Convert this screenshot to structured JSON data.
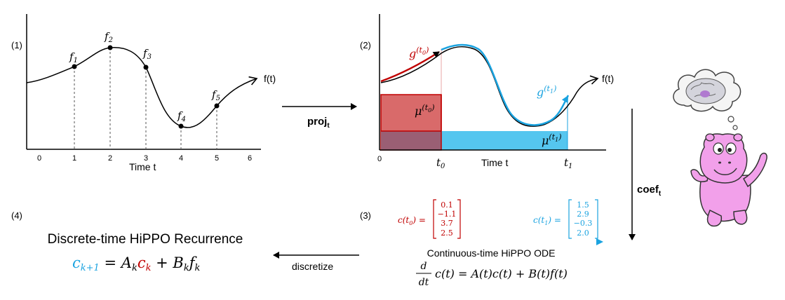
{
  "panel1": {
    "label": "(1)",
    "func_label": "f(t)",
    "xlabel": "Time t",
    "ticks": [
      "0",
      "1",
      "2",
      "3",
      "4",
      "5",
      "6"
    ],
    "samples": [
      {
        "name": "f1",
        "base": "f",
        "sub": "1",
        "t": 1
      },
      {
        "name": "f2",
        "base": "f",
        "sub": "2",
        "t": 2
      },
      {
        "name": "f3",
        "base": "f",
        "sub": "3",
        "t": 3
      },
      {
        "name": "f4",
        "base": "f",
        "sub": "4",
        "t": 4
      },
      {
        "name": "f5",
        "base": "f",
        "sub": "5",
        "t": 5
      }
    ]
  },
  "arrow_proj": {
    "label": "proj",
    "sub": "t"
  },
  "panel2": {
    "label": "(2)",
    "func_label": "f(t)",
    "xlabel": "Time t",
    "tick0": "0",
    "t0": {
      "base": "t",
      "sub": "0"
    },
    "t1": {
      "base": "t",
      "sub": "1"
    },
    "g0": {
      "base": "g",
      "sup": "(t",
      "supsub": "0",
      "supend": ")"
    },
    "g1": {
      "base": "g",
      "sup": "(t",
      "supsub": "1",
      "supend": ")"
    },
    "mu0": {
      "base": "μ",
      "sup": "(t",
      "supsub": "0",
      "supend": ")"
    },
    "mu1": {
      "base": "μ",
      "sup": "(t",
      "supsub": "1",
      "supend": ")"
    }
  },
  "arrow_coef": {
    "label": "coef",
    "sub": "t"
  },
  "panel3": {
    "label": "(3)",
    "c0_label": "c(t",
    "c0_sub": "0",
    "c0_end": ") =",
    "c0_values": [
      "0.1",
      "−1.1",
      "3.7",
      "2.5"
    ],
    "c1_label": "c(t",
    "c1_sub": "1",
    "c1_end": ") =",
    "c1_values": [
      "1.5",
      "2.9",
      "−0.3",
      "2.0"
    ],
    "title": "Continuous-time HiPPO ODE",
    "ode_d": "d",
    "ode_dt": "dt",
    "ode_rest": "c(t) = A(t)c(t) + B(t)f(t)"
  },
  "arrow_discretize": {
    "label": "discretize"
  },
  "panel4": {
    "label": "(4)",
    "title": "Discrete-time HiPPO Recurrence",
    "eq_c": "c",
    "eq_sub_k1": "k+1",
    "eq_eq": " = A",
    "eq_sub_k": "k",
    "eq_ck": "c",
    "eq_ck_sub": "k",
    "eq_plus": " + B",
    "eq_bk_sub": "k",
    "eq_f": "f",
    "eq_f_sub": "k"
  },
  "colors": {
    "red": "#c00000",
    "blue": "#1aa3e0",
    "red_fill": "#d96a6a",
    "blue_fill": "#55c6ef",
    "overlap": "#9a5f74",
    "pink": "#f2a0ea"
  }
}
